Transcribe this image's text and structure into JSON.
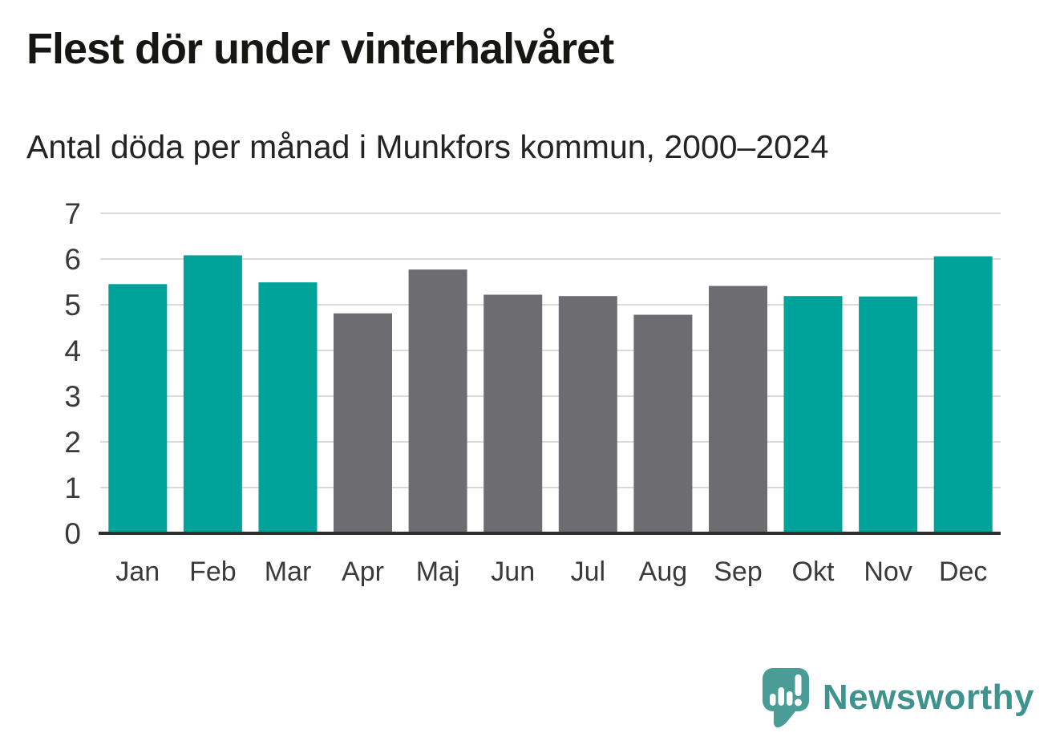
{
  "header": {
    "title": "Flest dör under vinterhalvåret",
    "subtitle": "Antal döda per månad i Munkfors kommun, 2000–2024"
  },
  "chart_data": {
    "type": "bar",
    "title": "Flest dör under vinterhalvåret",
    "subtitle": "Antal döda per månad i Munkfors kommun, 2000–2024",
    "categories": [
      "Jan",
      "Feb",
      "Mar",
      "Apr",
      "Maj",
      "Jun",
      "Jul",
      "Aug",
      "Sep",
      "Okt",
      "Nov",
      "Dec"
    ],
    "values": [
      5.45,
      6.08,
      5.49,
      4.81,
      5.77,
      5.22,
      5.19,
      4.78,
      5.41,
      5.19,
      5.18,
      6.06
    ],
    "highlighted": [
      true,
      true,
      true,
      false,
      false,
      false,
      false,
      false,
      false,
      true,
      true,
      true
    ],
    "xlabel": "",
    "ylabel": "",
    "ylim": [
      0,
      7
    ],
    "yticks": [
      0,
      1,
      2,
      3,
      4,
      5,
      6,
      7
    ],
    "grid": true,
    "legend": "none",
    "colors": {
      "highlight": "#00a39a",
      "muted": "#6d6d71",
      "gridline": "#dadada",
      "axis": "#2e2e2e",
      "tick_text": "#3a3a3a"
    }
  },
  "footer": {
    "brand": "Newsworthy",
    "logo_icon": "newsworthy-speech-bubble-bar-chart-icon",
    "logo_color": "#4a9c97",
    "text_color": "#3f938e"
  }
}
